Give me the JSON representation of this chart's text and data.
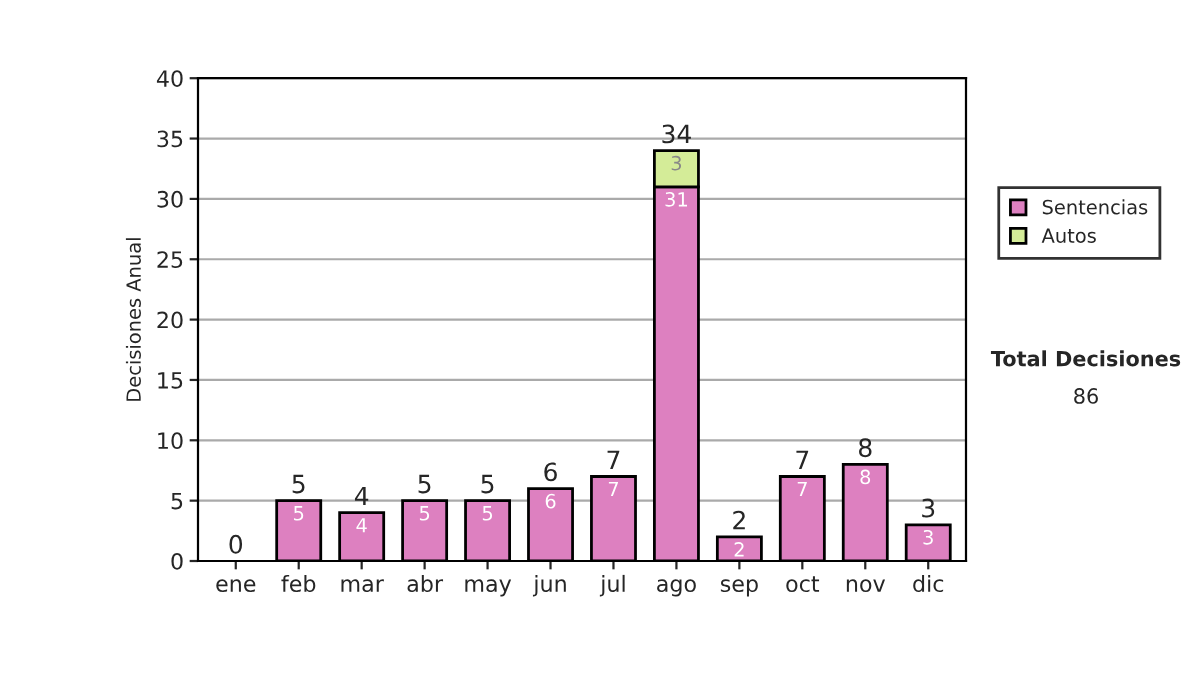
{
  "chart_data": {
    "type": "bar",
    "stacked": true,
    "ylabel": "Decisiones Anual",
    "categories": [
      "ene",
      "feb",
      "mar",
      "abr",
      "may",
      "jun",
      "jul",
      "ago",
      "sep",
      "oct",
      "nov",
      "dic"
    ],
    "series": [
      {
        "name": "Sentencias",
        "color": "#dd80c0",
        "values": [
          0,
          5,
          4,
          5,
          5,
          6,
          7,
          31,
          2,
          7,
          8,
          3
        ],
        "value_labels": [
          null,
          "5",
          "4",
          "5",
          "5",
          "6",
          "7",
          "31",
          "2",
          "7",
          "8",
          "3"
        ]
      },
      {
        "name": "Autos",
        "color": "#d4ec98",
        "values": [
          0,
          0,
          0,
          0,
          0,
          0,
          0,
          3,
          0,
          0,
          0,
          0
        ],
        "value_labels": [
          null,
          null,
          null,
          null,
          null,
          null,
          null,
          "3",
          null,
          null,
          null,
          null
        ]
      }
    ],
    "totals": [
      "0",
      "5",
      "4",
      "5",
      "5",
      "6",
      "7",
      "34",
      "2",
      "7",
      "8",
      "3"
    ],
    "ylim": [
      0,
      40
    ],
    "yticks": [
      0,
      5,
      10,
      15,
      20,
      25,
      30,
      35,
      40
    ],
    "grid": "y",
    "legend": "right",
    "annotations": [
      "Total Decisiones",
      "86"
    ]
  }
}
